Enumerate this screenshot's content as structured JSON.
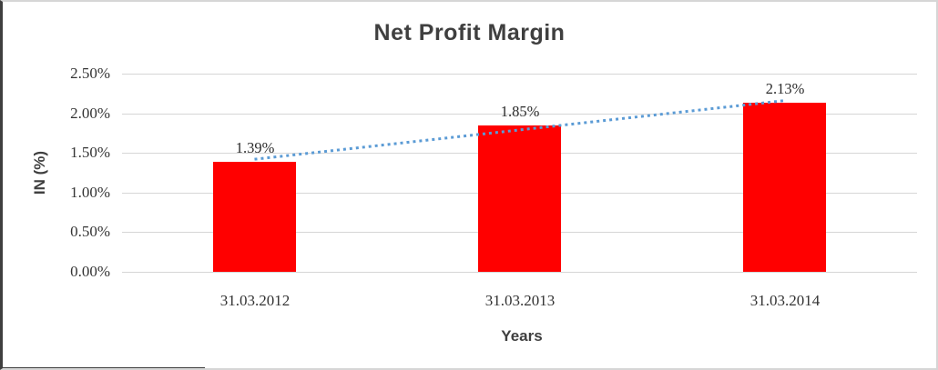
{
  "chart_data": {
    "type": "bar",
    "title": "Net Profit Margin",
    "xlabel": "Years",
    "ylabel": "IN (%)",
    "categories": [
      "31.03.2012",
      "31.03.2013",
      "31.03.2014"
    ],
    "values": [
      1.39,
      1.85,
      2.13
    ],
    "data_labels": [
      "1.39%",
      "1.85%",
      "2.13%"
    ],
    "ylim": [
      0,
      2.5
    ],
    "ytick_step": 0.5,
    "ytick_labels": [
      "0.00%",
      "0.50%",
      "1.00%",
      "1.50%",
      "2.00%",
      "2.50%"
    ],
    "grid": true,
    "legend": false,
    "trendline": {
      "type": "linear",
      "style": "dotted",
      "color": "#5B9BD5"
    },
    "colors": {
      "bar": "#FF0000",
      "gridline": "#D6D6D6",
      "title_text": "#3F3F3F",
      "tick_text": "#333333"
    }
  }
}
